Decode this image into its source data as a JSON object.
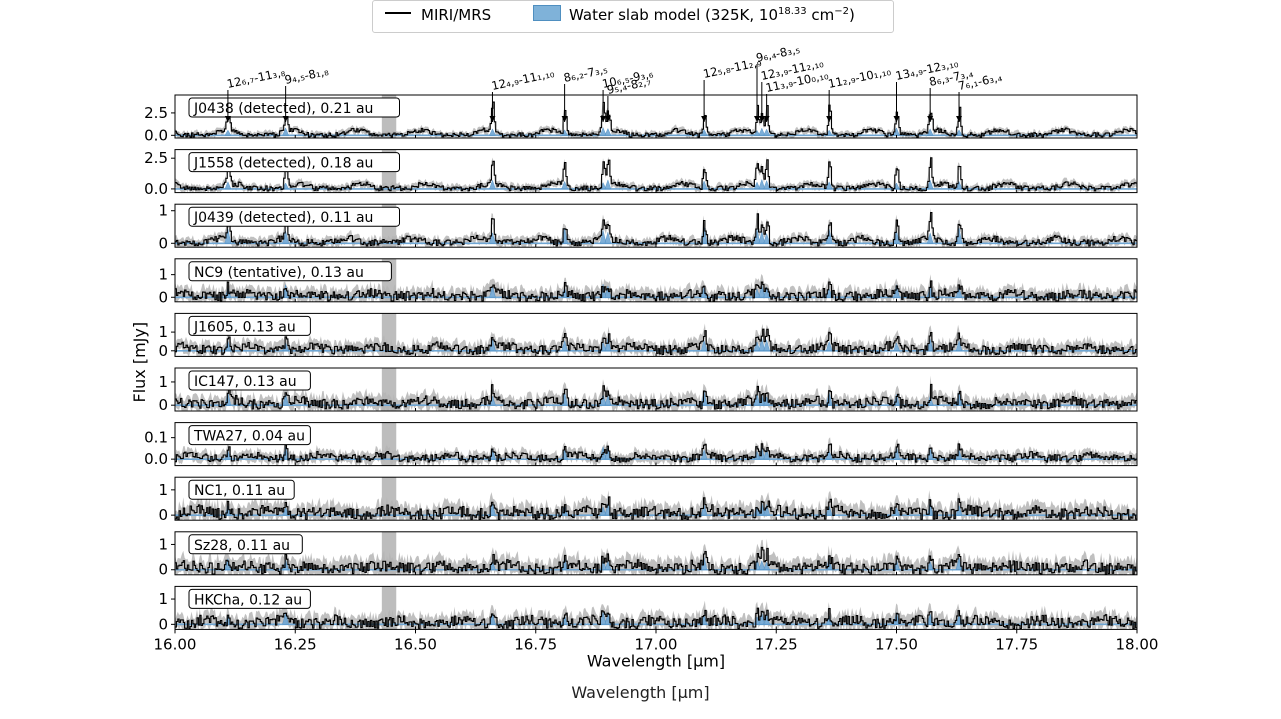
{
  "legend": {
    "miri_label": "MIRI/MRS",
    "slab_label": "Water slab model (325K, 10",
    "slab_exp": "18.33",
    "slab_unit": " cm",
    "slab_unit_exp": "−2",
    "slab_close": ")"
  },
  "footer_label": "Wavelength [μm]",
  "chart_data": {
    "type": "line",
    "xlabel": "Wavelength [μm]",
    "ylabel": "Flux [mJy]",
    "xlim": [
      16.0,
      18.0
    ],
    "x_ticks": [
      "16.00",
      "16.25",
      "16.50",
      "16.75",
      "17.00",
      "17.25",
      "17.50",
      "17.75",
      "18.00"
    ],
    "shaded_region": [
      16.43,
      16.46
    ],
    "panels": [
      {
        "label": "J0438 (detected), 0.21 au",
        "ylim": [
          -0.3,
          4.5
        ],
        "yticks": [
          "0.0",
          "2.5"
        ],
        "ytick_values": [
          0,
          2.5
        ],
        "peak": 3.5,
        "noise": 0.35,
        "model_scale": 0.9,
        "seed": 11
      },
      {
        "label": "J1558 (detected), 0.18 au",
        "ylim": [
          -0.3,
          3.2
        ],
        "yticks": [
          "0.0",
          "2.5"
        ],
        "ytick_values": [
          0,
          2.5
        ],
        "peak": 2.4,
        "noise": 0.3,
        "model_scale": 0.8,
        "seed": 23
      },
      {
        "label": "J0439 (detected), 0.11 au",
        "ylim": [
          -0.12,
          1.2
        ],
        "yticks": [
          "0",
          "1"
        ],
        "ytick_values": [
          0,
          1
        ],
        "peak": 0.85,
        "noise": 0.14,
        "model_scale": 0.5,
        "seed": 37
      },
      {
        "label": "NC9 (tentative), 0.13 au",
        "ylim": [
          -0.2,
          1.7
        ],
        "yticks": [
          "0",
          "1"
        ],
        "ytick_values": [
          0,
          1
        ],
        "peak": 0.9,
        "noise": 0.3,
        "model_scale": 0.6,
        "seed": 41
      },
      {
        "label": "J1605, 0.13 au",
        "ylim": [
          -0.3,
          2.0
        ],
        "yticks": [
          "0",
          "1"
        ],
        "ytick_values": [
          0,
          1
        ],
        "peak": 1.4,
        "noise": 0.35,
        "model_scale": 0.7,
        "seed": 53
      },
      {
        "label": "IC147, 0.13 au",
        "ylim": [
          -0.25,
          1.6
        ],
        "yticks": [
          "0",
          "1"
        ],
        "ytick_values": [
          0,
          1
        ],
        "peak": 1.1,
        "noise": 0.3,
        "model_scale": 0.6,
        "seed": 67
      },
      {
        "label": "TWA27, 0.04 au",
        "ylim": [
          -0.03,
          0.17
        ],
        "yticks": [
          "0.0",
          "0.1"
        ],
        "ytick_values": [
          0,
          0.1
        ],
        "peak": 0.11,
        "noise": 0.025,
        "model_scale": 0.06,
        "seed": 71
      },
      {
        "label": "NC1, 0.11 au",
        "ylim": [
          -0.2,
          1.5
        ],
        "yticks": [
          "0",
          "1"
        ],
        "ytick_values": [
          0,
          1
        ],
        "peak": 0.9,
        "noise": 0.33,
        "model_scale": 0.5,
        "seed": 83
      },
      {
        "label": "Sz28, 0.11 au",
        "ylim": [
          -0.2,
          1.5
        ],
        "yticks": [
          "0",
          "1"
        ],
        "ytick_values": [
          0,
          1
        ],
        "peak": 0.9,
        "noise": 0.33,
        "model_scale": 0.5,
        "seed": 97
      },
      {
        "label": "HKCha, 0.12 au",
        "ylim": [
          -0.2,
          1.5
        ],
        "yticks": [
          "0",
          "1"
        ],
        "ytick_values": [
          0,
          1
        ],
        "peak": 0.9,
        "noise": 0.3,
        "model_scale": 0.5,
        "seed": 101
      }
    ],
    "water_lines_um": [
      16.11,
      16.23,
      16.66,
      16.81,
      16.89,
      16.9,
      17.1,
      17.21,
      17.22,
      17.23,
      17.36,
      17.5,
      17.57,
      17.63
    ],
    "line_annotations": [
      {
        "x": 16.11,
        "text": "12₆,₇-11₃,₈",
        "arrow_to": 16.11
      },
      {
        "x": 16.23,
        "text": "9₄,₅-8₁,₈",
        "arrow_to": 16.23
      },
      {
        "x": 16.66,
        "text": "12₄,₉-11₁,₁₀",
        "arrow_to": 16.66
      },
      {
        "x": 16.81,
        "text": "8₆,₂-7₃,₅",
        "arrow_to": 16.81
      },
      {
        "x": 16.89,
        "text": "10₆,₅-9₃,₆",
        "arrow_to": 16.89
      },
      {
        "x": 16.9,
        "text": "9₅,₄-8₂,₇",
        "arrow_to": 16.9
      },
      {
        "x": 17.1,
        "text": "12₅,₈-11₂,₉",
        "arrow_to": 17.1
      },
      {
        "x": 17.21,
        "text": "9₆,₄-8₃,₅",
        "arrow_to": 17.21
      },
      {
        "x": 17.22,
        "text": "12₃,₉-11₂,₁₀",
        "arrow_to": 17.22
      },
      {
        "x": 17.23,
        "text": "11₃,₉-10₀,₁₀",
        "arrow_to": 17.23
      },
      {
        "x": 17.36,
        "text": "11₂,₉-10₁,₁₀",
        "arrow_to": 17.36
      },
      {
        "x": 17.5,
        "text": "13₄,₉-12₃,₁₀",
        "arrow_to": 17.5
      },
      {
        "x": 17.57,
        "text": "8₆,₃-7₃,₄",
        "arrow_to": 17.57
      },
      {
        "x": 17.63,
        "text": "7₆,₁-6₃,₄",
        "arrow_to": 17.63
      }
    ],
    "colors": {
      "data": "#000000",
      "error": "#b5b5b5",
      "model": "#6fa6d3",
      "model_edge": "#4d8ec4",
      "shade": "#9a9a9a"
    },
    "grid": false,
    "legend_position": "top-center"
  }
}
